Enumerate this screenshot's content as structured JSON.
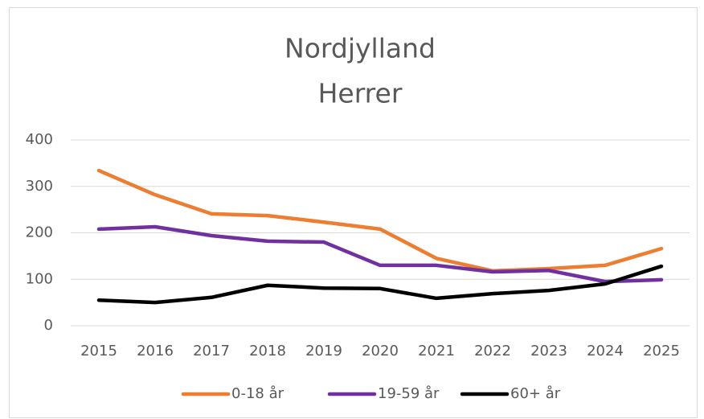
{
  "chart_data": {
    "type": "line",
    "title": "Nordjylland",
    "subtitle": "Herrer",
    "categories": [
      "2015",
      "2016",
      "2017",
      "2018",
      "2019",
      "2020",
      "2021",
      "2022",
      "2023",
      "2024",
      "2025"
    ],
    "series": [
      {
        "name": "0-18 år",
        "color": "#ed7d31",
        "values": [
          334,
          282,
          241,
          237,
          223,
          208,
          145,
          118,
          123,
          130,
          166
        ]
      },
      {
        "name": "19-59 år",
        "color": "#7030a0",
        "values": [
          208,
          213,
          194,
          182,
          180,
          130,
          130,
          116,
          119,
          95,
          99
        ]
      },
      {
        "name": "60+ år",
        "color": "#000000",
        "values": [
          55,
          50,
          61,
          87,
          81,
          80,
          59,
          69,
          76,
          90,
          128
        ]
      }
    ],
    "ylim": [
      0,
      400
    ],
    "yticks": [
      0,
      100,
      200,
      300,
      400
    ],
    "grid": true,
    "legend": "bottom"
  }
}
